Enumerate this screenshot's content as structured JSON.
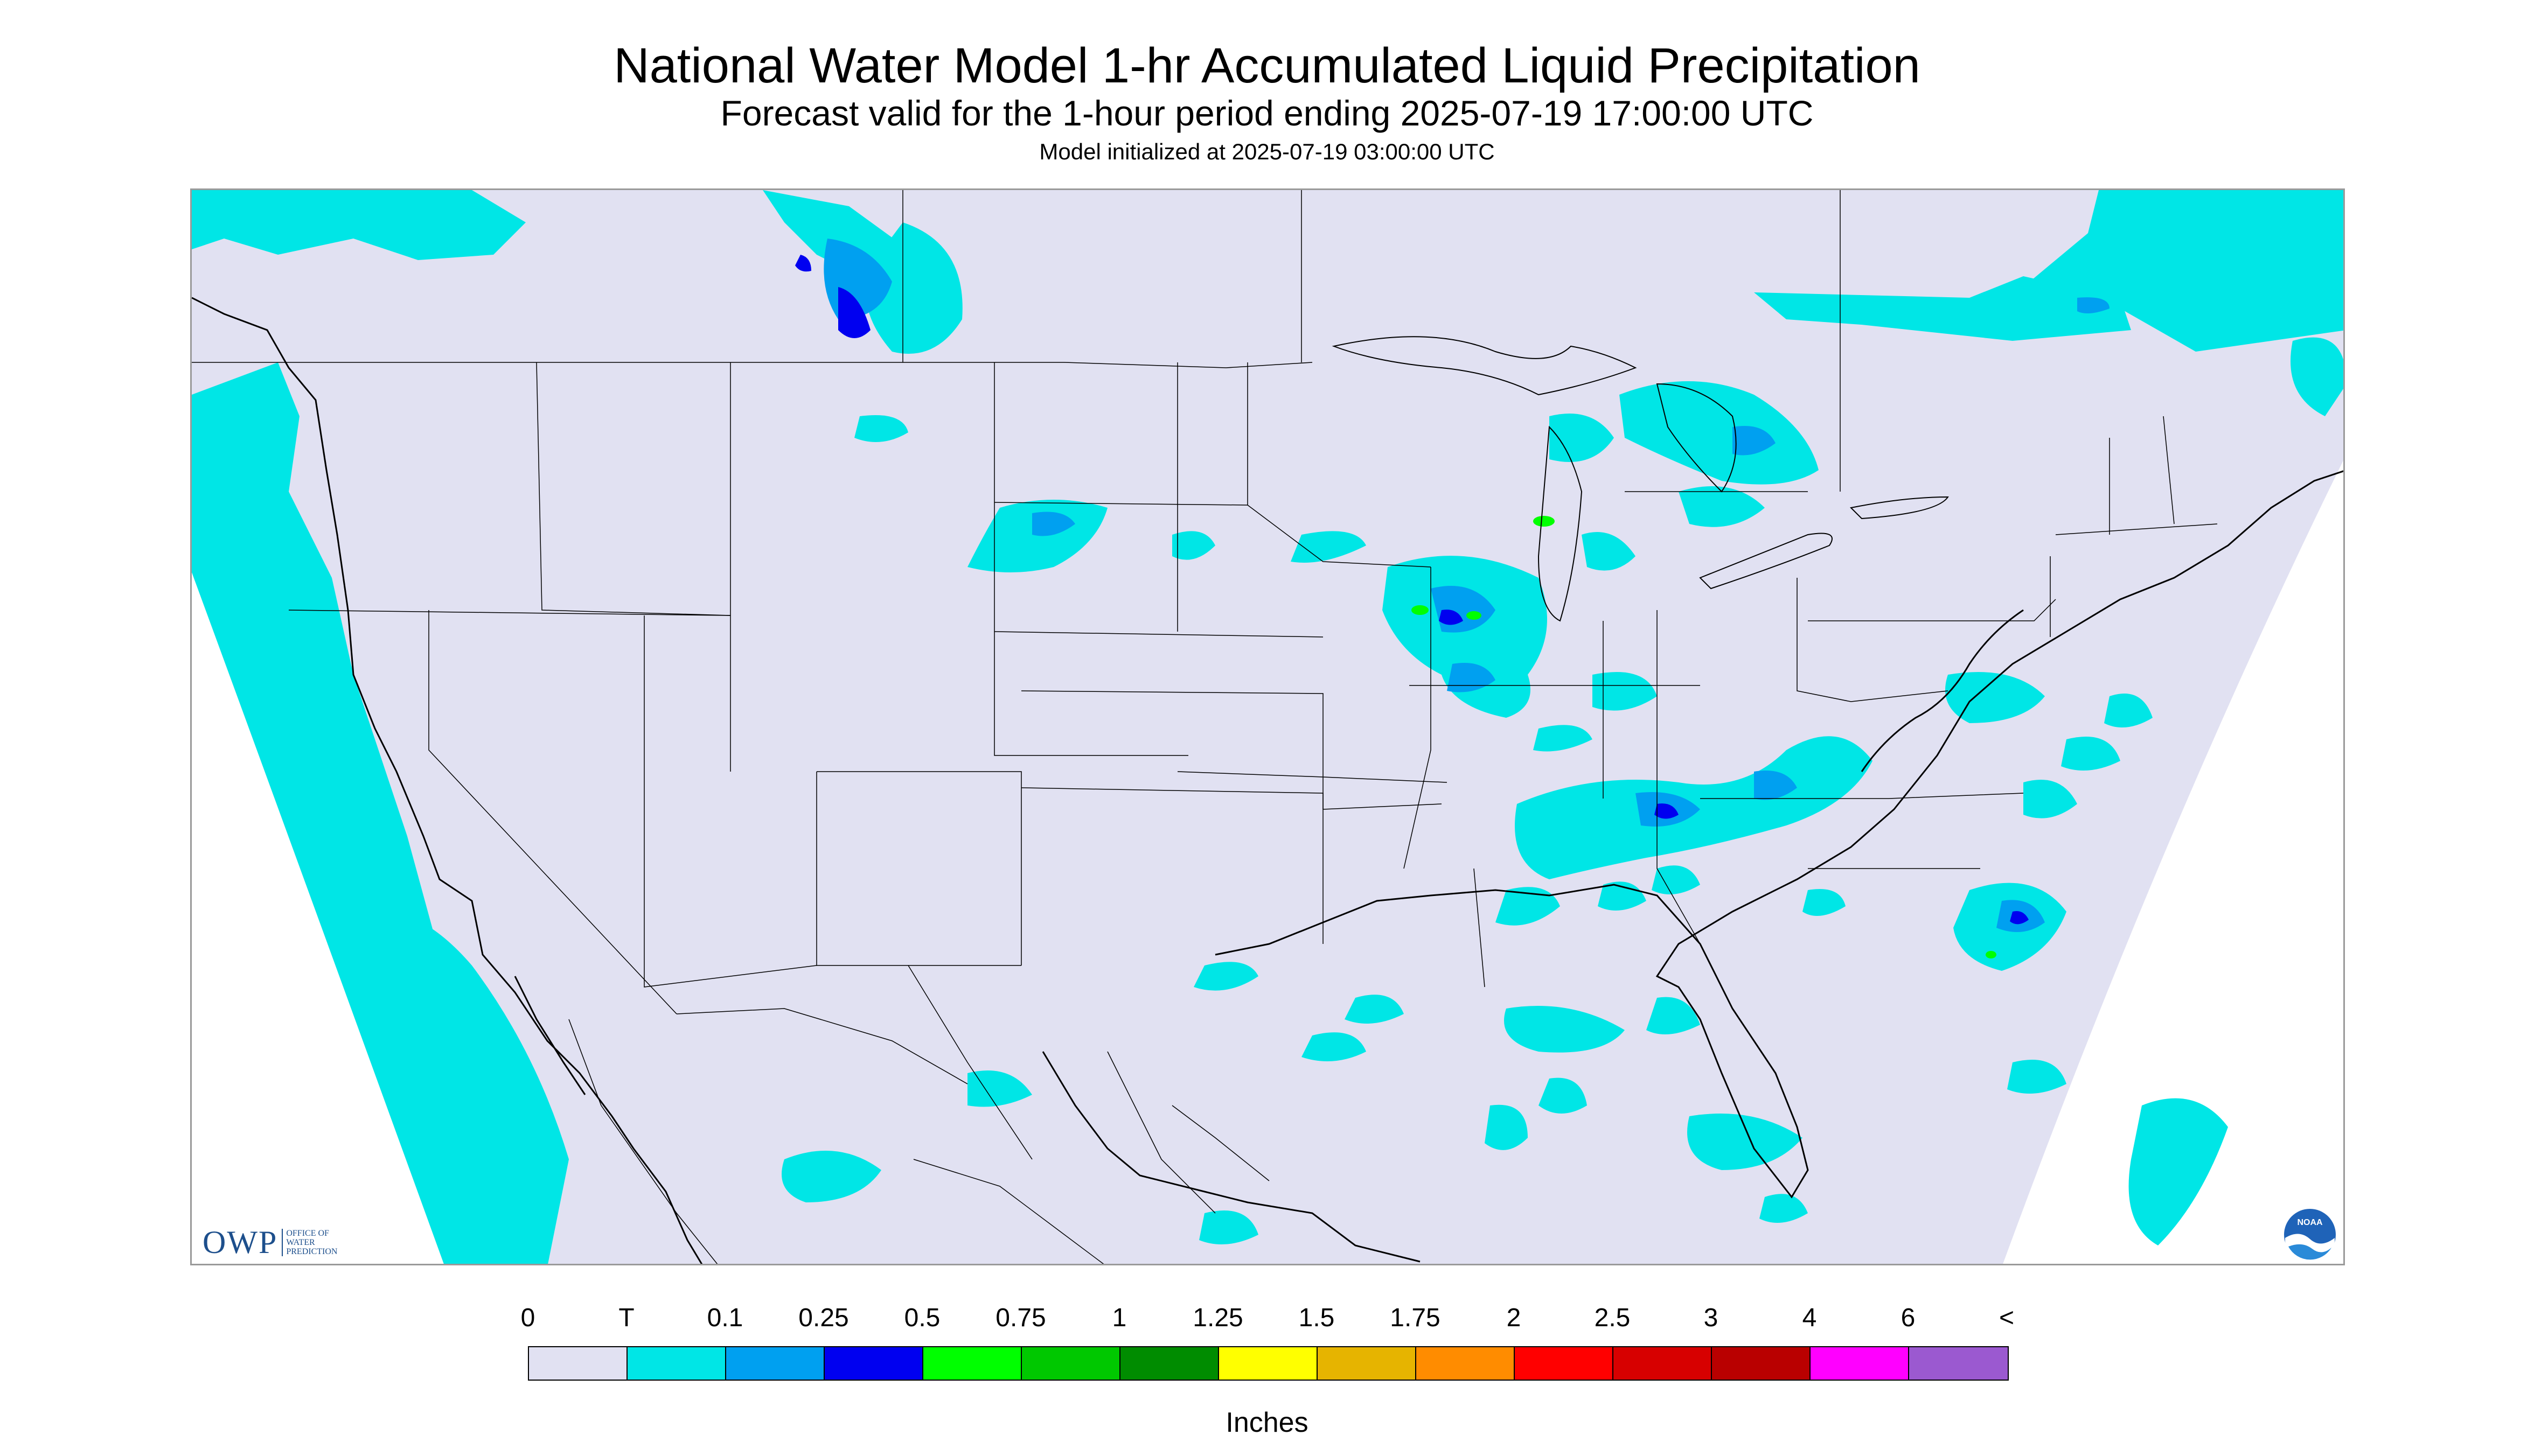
{
  "header": {
    "title": "National Water Model 1-hr Accumulated Liquid Precipitation",
    "subtitle": "Forecast valid for the 1-hour period ending 2025-07-19 17:00:00 UTC",
    "init": "Model initialized at 2025-07-19 03:00:00 UTC"
  },
  "branding": {
    "owp_main": "OWP",
    "owp_sub_lines": [
      "OFFICE OF",
      "WATER",
      "PREDICTION"
    ],
    "noaa_text": "NOAA"
  },
  "legend": {
    "labels": [
      "0",
      "T",
      "0.1",
      "0.25",
      "0.5",
      "0.75",
      "1",
      "1.25",
      "1.5",
      "1.75",
      "2",
      "2.5",
      "3",
      "4",
      "6",
      "<"
    ],
    "colors": [
      "#e1e1f2",
      "#00e6e6",
      "#00a0f0",
      "#0000f0",
      "#00ff00",
      "#00c800",
      "#008c00",
      "#ffff00",
      "#e6b400",
      "#ff8c00",
      "#ff0000",
      "#d70000",
      "#b90000",
      "#ff00ff",
      "#9b59d0"
    ],
    "units": "Inches"
  },
  "map_colors": {
    "land": "#e1e1f2",
    "outside": "#ffffff",
    "boundary": "#000000",
    "trace": "#00e6e6",
    "light": "#00a0f0",
    "moderate": "#0000f0",
    "heavy": "#00ff00"
  }
}
